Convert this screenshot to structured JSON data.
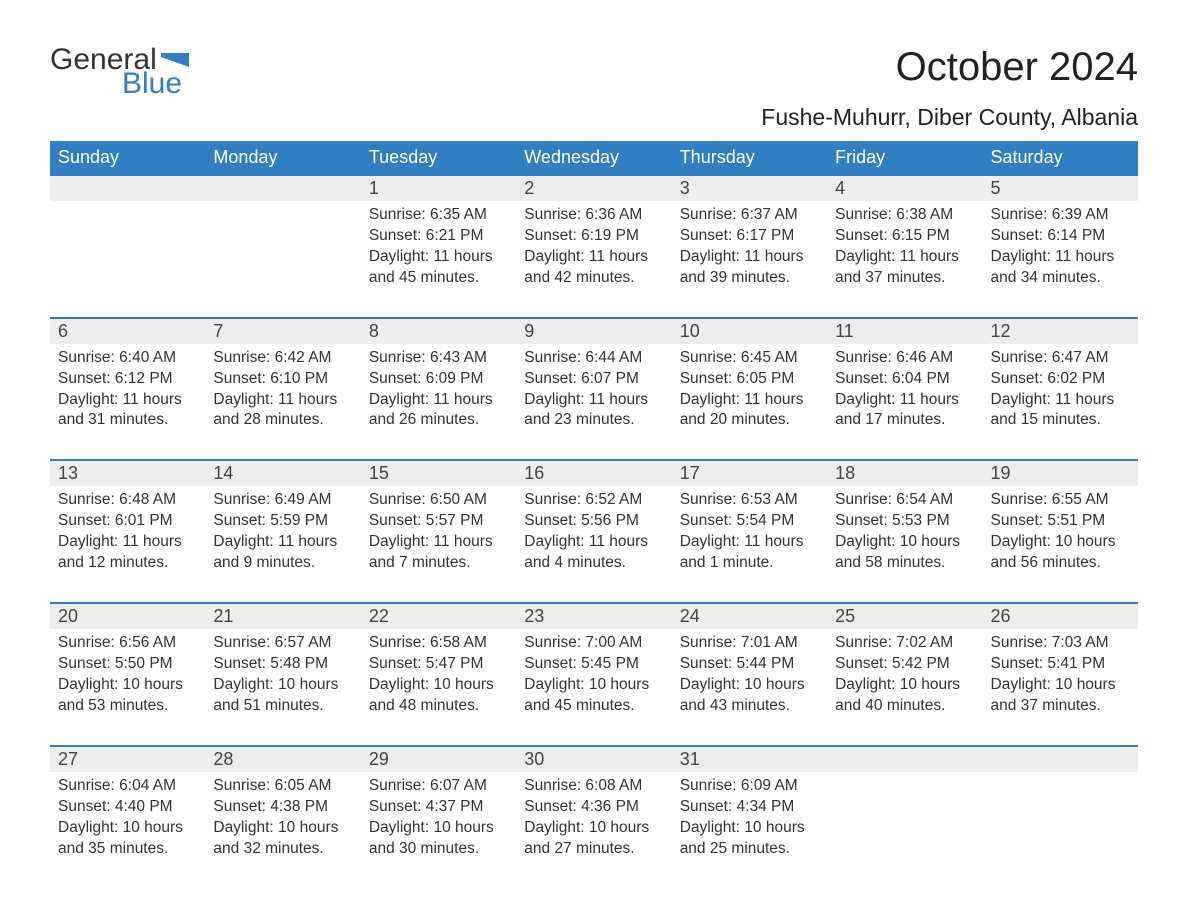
{
  "logo": {
    "word1": "General",
    "word2": "Blue",
    "accent_color": "#2f7fc2"
  },
  "title": "October 2024",
  "location": "Fushe-Muhurr, Diber County, Albania",
  "colors": {
    "header_bg": "#2f7fc2",
    "header_text": "#ffffff",
    "daynum_bg": "#ededed",
    "row_border": "#2f7fc2",
    "body_text": "#333333",
    "page_bg": "#ffffff"
  },
  "day_headers": [
    "Sunday",
    "Monday",
    "Tuesday",
    "Wednesday",
    "Thursday",
    "Friday",
    "Saturday"
  ],
  "weeks": [
    {
      "nums": [
        "",
        "",
        "1",
        "2",
        "3",
        "4",
        "5"
      ],
      "cells": [
        "",
        "",
        "Sunrise: 6:35 AM\nSunset: 6:21 PM\nDaylight: 11 hours and 45 minutes.",
        "Sunrise: 6:36 AM\nSunset: 6:19 PM\nDaylight: 11 hours and 42 minutes.",
        "Sunrise: 6:37 AM\nSunset: 6:17 PM\nDaylight: 11 hours and 39 minutes.",
        "Sunrise: 6:38 AM\nSunset: 6:15 PM\nDaylight: 11 hours and 37 minutes.",
        "Sunrise: 6:39 AM\nSunset: 6:14 PM\nDaylight: 11 hours and 34 minutes."
      ]
    },
    {
      "nums": [
        "6",
        "7",
        "8",
        "9",
        "10",
        "11",
        "12"
      ],
      "cells": [
        "Sunrise: 6:40 AM\nSunset: 6:12 PM\nDaylight: 11 hours and 31 minutes.",
        "Sunrise: 6:42 AM\nSunset: 6:10 PM\nDaylight: 11 hours and 28 minutes.",
        "Sunrise: 6:43 AM\nSunset: 6:09 PM\nDaylight: 11 hours and 26 minutes.",
        "Sunrise: 6:44 AM\nSunset: 6:07 PM\nDaylight: 11 hours and 23 minutes.",
        "Sunrise: 6:45 AM\nSunset: 6:05 PM\nDaylight: 11 hours and 20 minutes.",
        "Sunrise: 6:46 AM\nSunset: 6:04 PM\nDaylight: 11 hours and 17 minutes.",
        "Sunrise: 6:47 AM\nSunset: 6:02 PM\nDaylight: 11 hours and 15 minutes."
      ]
    },
    {
      "nums": [
        "13",
        "14",
        "15",
        "16",
        "17",
        "18",
        "19"
      ],
      "cells": [
        "Sunrise: 6:48 AM\nSunset: 6:01 PM\nDaylight: 11 hours and 12 minutes.",
        "Sunrise: 6:49 AM\nSunset: 5:59 PM\nDaylight: 11 hours and 9 minutes.",
        "Sunrise: 6:50 AM\nSunset: 5:57 PM\nDaylight: 11 hours and 7 minutes.",
        "Sunrise: 6:52 AM\nSunset: 5:56 PM\nDaylight: 11 hours and 4 minutes.",
        "Sunrise: 6:53 AM\nSunset: 5:54 PM\nDaylight: 11 hours and 1 minute.",
        "Sunrise: 6:54 AM\nSunset: 5:53 PM\nDaylight: 10 hours and 58 minutes.",
        "Sunrise: 6:55 AM\nSunset: 5:51 PM\nDaylight: 10 hours and 56 minutes."
      ]
    },
    {
      "nums": [
        "20",
        "21",
        "22",
        "23",
        "24",
        "25",
        "26"
      ],
      "cells": [
        "Sunrise: 6:56 AM\nSunset: 5:50 PM\nDaylight: 10 hours and 53 minutes.",
        "Sunrise: 6:57 AM\nSunset: 5:48 PM\nDaylight: 10 hours and 51 minutes.",
        "Sunrise: 6:58 AM\nSunset: 5:47 PM\nDaylight: 10 hours and 48 minutes.",
        "Sunrise: 7:00 AM\nSunset: 5:45 PM\nDaylight: 10 hours and 45 minutes.",
        "Sunrise: 7:01 AM\nSunset: 5:44 PM\nDaylight: 10 hours and 43 minutes.",
        "Sunrise: 7:02 AM\nSunset: 5:42 PM\nDaylight: 10 hours and 40 minutes.",
        "Sunrise: 7:03 AM\nSunset: 5:41 PM\nDaylight: 10 hours and 37 minutes."
      ]
    },
    {
      "nums": [
        "27",
        "28",
        "29",
        "30",
        "31",
        "",
        ""
      ],
      "cells": [
        "Sunrise: 6:04 AM\nSunset: 4:40 PM\nDaylight: 10 hours and 35 minutes.",
        "Sunrise: 6:05 AM\nSunset: 4:38 PM\nDaylight: 10 hours and 32 minutes.",
        "Sunrise: 6:07 AM\nSunset: 4:37 PM\nDaylight: 10 hours and 30 minutes.",
        "Sunrise: 6:08 AM\nSunset: 4:36 PM\nDaylight: 10 hours and 27 minutes.",
        "Sunrise: 6:09 AM\nSunset: 4:34 PM\nDaylight: 10 hours and 25 minutes.",
        "",
        ""
      ]
    }
  ]
}
